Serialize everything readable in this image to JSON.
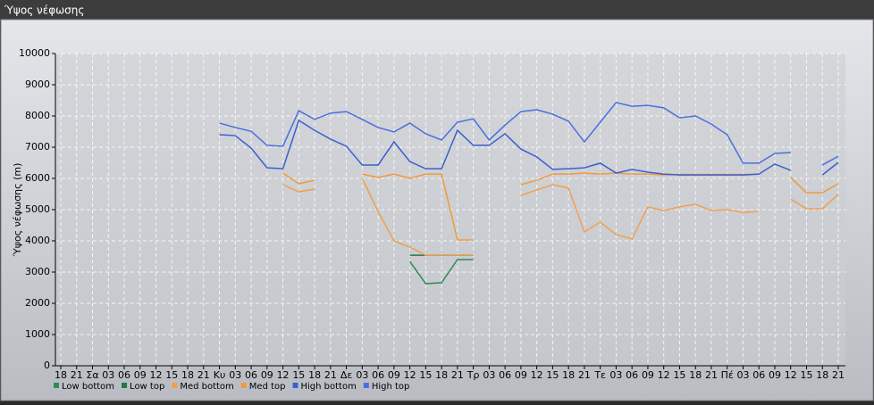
{
  "chart_data": {
    "type": "line",
    "title": "Ύψος νέφωσης",
    "y_label": "Ύψος νέφωσης (m)",
    "categories": [
      "18",
      "21",
      "Σα",
      "03",
      "06",
      "09",
      "12",
      "15",
      "18",
      "21",
      "Κυ",
      "03",
      "06",
      "09",
      "12",
      "15",
      "18",
      "21",
      "Δε",
      "03",
      "06",
      "09",
      "12",
      "15",
      "18",
      "21",
      "Τρ",
      "03",
      "06",
      "09",
      "12",
      "15",
      "18",
      "21",
      "Τε",
      "03",
      "06",
      "09",
      "12",
      "15",
      "18",
      "21",
      "Πέ",
      "03",
      "06",
      "09",
      "12",
      "15",
      "18",
      "21"
    ],
    "ylim": [
      0,
      10000
    ],
    "yticks": [
      0,
      1000,
      2000,
      3000,
      4000,
      5000,
      6000,
      7000,
      8000,
      9000,
      10000
    ],
    "grid": true,
    "series": [
      {
        "name": "Low bottom",
        "color": "#2e8b57",
        "values": [
          null,
          null,
          null,
          null,
          null,
          null,
          null,
          null,
          null,
          null,
          null,
          null,
          null,
          null,
          null,
          null,
          null,
          null,
          null,
          null,
          null,
          null,
          3340,
          2630,
          2660,
          3400,
          3400,
          null,
          null,
          null,
          null,
          null,
          null,
          null,
          null,
          null,
          null,
          null,
          null,
          null,
          null,
          null,
          null,
          null,
          null,
          null,
          null,
          null,
          null,
          null
        ]
      },
      {
        "name": "Low top",
        "color": "#1f7a4a",
        "values": [
          null,
          null,
          null,
          null,
          null,
          null,
          null,
          null,
          null,
          null,
          null,
          null,
          null,
          null,
          null,
          null,
          null,
          null,
          null,
          null,
          null,
          null,
          3540,
          3540,
          3540,
          3540,
          3540,
          null,
          null,
          null,
          null,
          null,
          null,
          null,
          null,
          null,
          null,
          null,
          null,
          null,
          null,
          null,
          null,
          null,
          null,
          null,
          null,
          null,
          null,
          null
        ]
      },
      {
        "name": "Med bottom",
        "color": "#f0a050",
        "values": [
          null,
          null,
          null,
          null,
          null,
          null,
          null,
          null,
          null,
          null,
          null,
          null,
          null,
          null,
          5800,
          5570,
          5660,
          null,
          null,
          6000,
          4940,
          4000,
          3800,
          3540,
          3540,
          3540,
          3540,
          null,
          null,
          5460,
          5630,
          5800,
          5690,
          4290,
          4600,
          4200,
          4060,
          5090,
          4970,
          5090,
          5170,
          4970,
          5000,
          4910,
          4940,
          null,
          5340,
          5030,
          5030,
          5490
        ]
      },
      {
        "name": "Med top",
        "color": "#f09a3c",
        "values": [
          null,
          null,
          null,
          null,
          null,
          null,
          null,
          null,
          null,
          null,
          null,
          null,
          null,
          null,
          6170,
          5830,
          5940,
          null,
          null,
          6140,
          6030,
          6140,
          6000,
          6140,
          6140,
          4030,
          4030,
          null,
          null,
          5800,
          5940,
          6140,
          6140,
          6170,
          6140,
          6170,
          6140,
          6140,
          6110,
          6130,
          6130,
          6130,
          6130,
          6130,
          6130,
          null,
          6030,
          5540,
          5540,
          5830
        ]
      },
      {
        "name": "High bottom",
        "color": "#3a5fd0",
        "values": [
          null,
          null,
          null,
          null,
          null,
          null,
          null,
          null,
          null,
          null,
          7400,
          7370,
          6970,
          6340,
          6310,
          7860,
          7540,
          7260,
          7030,
          6430,
          6430,
          7170,
          6540,
          6310,
          6310,
          7540,
          7060,
          7060,
          7430,
          6940,
          6690,
          6290,
          6310,
          6340,
          6490,
          6170,
          6290,
          6200,
          6140,
          6110,
          6110,
          6110,
          6110,
          6110,
          6140,
          6460,
          6260,
          null,
          6110,
          6510
        ]
      },
      {
        "name": "High top",
        "color": "#4a6fe0",
        "values": [
          null,
          null,
          null,
          null,
          null,
          null,
          null,
          null,
          null,
          null,
          7770,
          7630,
          7510,
          7060,
          7030,
          8170,
          7890,
          8090,
          8140,
          7890,
          7630,
          7490,
          7770,
          7430,
          7230,
          7800,
          7910,
          7230,
          7710,
          8140,
          8200,
          8060,
          7830,
          7170,
          7800,
          8430,
          8310,
          8340,
          8260,
          7940,
          8000,
          7740,
          7400,
          6490,
          6490,
          6800,
          6830,
          null,
          6430,
          6710
        ]
      }
    ]
  }
}
